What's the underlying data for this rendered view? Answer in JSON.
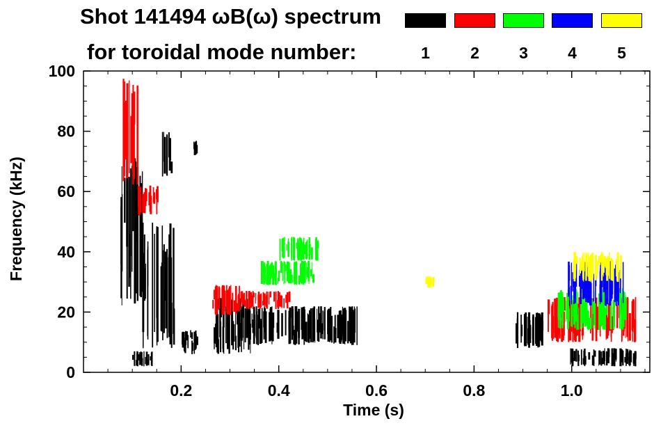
{
  "title": {
    "line1": "Shot 141494 ωB(ω) spectrum",
    "line2": "for toroidal mode number:"
  },
  "legend": [
    {
      "label": "1",
      "color": "#000000"
    },
    {
      "label": "2",
      "color": "#ff0000"
    },
    {
      "label": "3",
      "color": "#00ff00"
    },
    {
      "label": "4",
      "color": "#0000ff"
    },
    {
      "label": "5",
      "color": "#ffff00"
    }
  ],
  "chart_data": {
    "type": "heatmap",
    "xlabel": "Time (s)",
    "ylabel": "Frequency (kHz)",
    "xlim": [
      0.0,
      1.16
    ],
    "ylim": [
      0,
      100
    ],
    "xticks": [
      {
        "value": 0.2,
        "label": "0.2"
      },
      {
        "value": 0.4,
        "label": "0.4"
      },
      {
        "value": 0.6,
        "label": "0.6"
      },
      {
        "value": 0.8,
        "label": "0.8"
      },
      {
        "value": 1.0,
        "label": "1.0"
      }
    ],
    "yticks": [
      {
        "value": 0,
        "label": "0"
      },
      {
        "value": 20,
        "label": "20"
      },
      {
        "value": 40,
        "label": "40"
      },
      {
        "value": 60,
        "label": "60"
      },
      {
        "value": 80,
        "label": "80"
      },
      {
        "value": 100,
        "label": "100"
      }
    ],
    "x_minor_step": 0.05,
    "y_minor_step": 5,
    "regions": [
      {
        "mode": 1,
        "t": [
          0.075,
          0.125
        ],
        "f": [
          22,
          72
        ]
      },
      {
        "mode": 1,
        "t": [
          0.095,
          0.14
        ],
        "f": [
          2,
          7
        ]
      },
      {
        "mode": 1,
        "t": [
          0.12,
          0.185
        ],
        "f": [
          8,
          50
        ]
      },
      {
        "mode": 1,
        "t": [
          0.16,
          0.18
        ],
        "f": [
          65,
          80
        ]
      },
      {
        "mode": 1,
        "t": [
          0.225,
          0.235
        ],
        "f": [
          72,
          77
        ]
      },
      {
        "mode": 1,
        "t": [
          0.2,
          0.235
        ],
        "f": [
          6,
          14
        ]
      },
      {
        "mode": 1,
        "t": [
          0.265,
          0.345
        ],
        "f": [
          6,
          25
        ]
      },
      {
        "mode": 1,
        "t": [
          0.33,
          0.56
        ],
        "f": [
          9,
          22
        ]
      },
      {
        "mode": 1,
        "t": [
          0.88,
          0.94
        ],
        "f": [
          8,
          20
        ]
      },
      {
        "mode": 1,
        "t": [
          0.995,
          1.13
        ],
        "f": [
          2,
          8
        ]
      },
      {
        "mode": 2,
        "t": [
          0.08,
          0.11
        ],
        "f": [
          62,
          100
        ]
      },
      {
        "mode": 2,
        "t": [
          0.11,
          0.15
        ],
        "f": [
          52,
          62
        ]
      },
      {
        "mode": 2,
        "t": [
          0.26,
          0.32
        ],
        "f": [
          19,
          29
        ]
      },
      {
        "mode": 2,
        "t": [
          0.32,
          0.42
        ],
        "f": [
          21,
          27
        ]
      },
      {
        "mode": 2,
        "t": [
          0.95,
          1.13
        ],
        "f": [
          10,
          25
        ]
      },
      {
        "mode": 3,
        "t": [
          0.4,
          0.48
        ],
        "f": [
          37,
          45
        ]
      },
      {
        "mode": 3,
        "t": [
          0.36,
          0.47
        ],
        "f": [
          29,
          37
        ]
      },
      {
        "mode": 3,
        "t": [
          0.97,
          1.11
        ],
        "f": [
          14,
          28
        ]
      },
      {
        "mode": 4,
        "t": [
          0.99,
          1.11
        ],
        "f": [
          22,
          37
        ]
      },
      {
        "mode": 5,
        "t": [
          0.7,
          0.72
        ],
        "f": [
          28,
          32
        ]
      },
      {
        "mode": 5,
        "t": [
          1.0,
          1.1
        ],
        "f": [
          30,
          40
        ]
      }
    ]
  }
}
